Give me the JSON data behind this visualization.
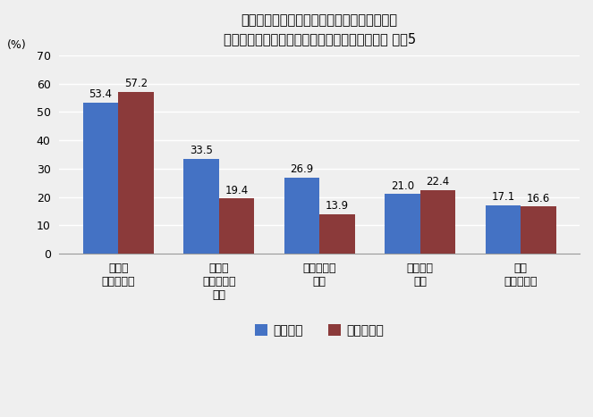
{
  "title_line1": "廃業した経営者引退決断時の「懸念事項」と",
  "title_line2": "経営者引退に際し「実際に問題」になったこと 上位5",
  "ylabel": "(%)",
  "categories": [
    "自身の\n収入の減少",
    "顧客や\n取引先への\n影響",
    "従業員への\n影響",
    "家族への\n影響",
    "個人\n財産の減少"
  ],
  "series1_label": "懸念事項",
  "series2_label": "実際に問題",
  "series1_values": [
    53.4,
    33.5,
    26.9,
    21.0,
    17.1
  ],
  "series2_values": [
    57.2,
    19.4,
    13.9,
    22.4,
    16.6
  ],
  "series1_color": "#4472C4",
  "series2_color": "#8B3A3A",
  "bar_width": 0.35,
  "ylim": [
    0,
    70
  ],
  "yticks": [
    0,
    10,
    20,
    30,
    40,
    50,
    60,
    70
  ],
  "background_color": "#EFEFEF",
  "title_fontsize": 10.5,
  "label_fontsize": 9,
  "tick_fontsize": 9,
  "legend_fontsize": 10,
  "value_fontsize": 8.5
}
